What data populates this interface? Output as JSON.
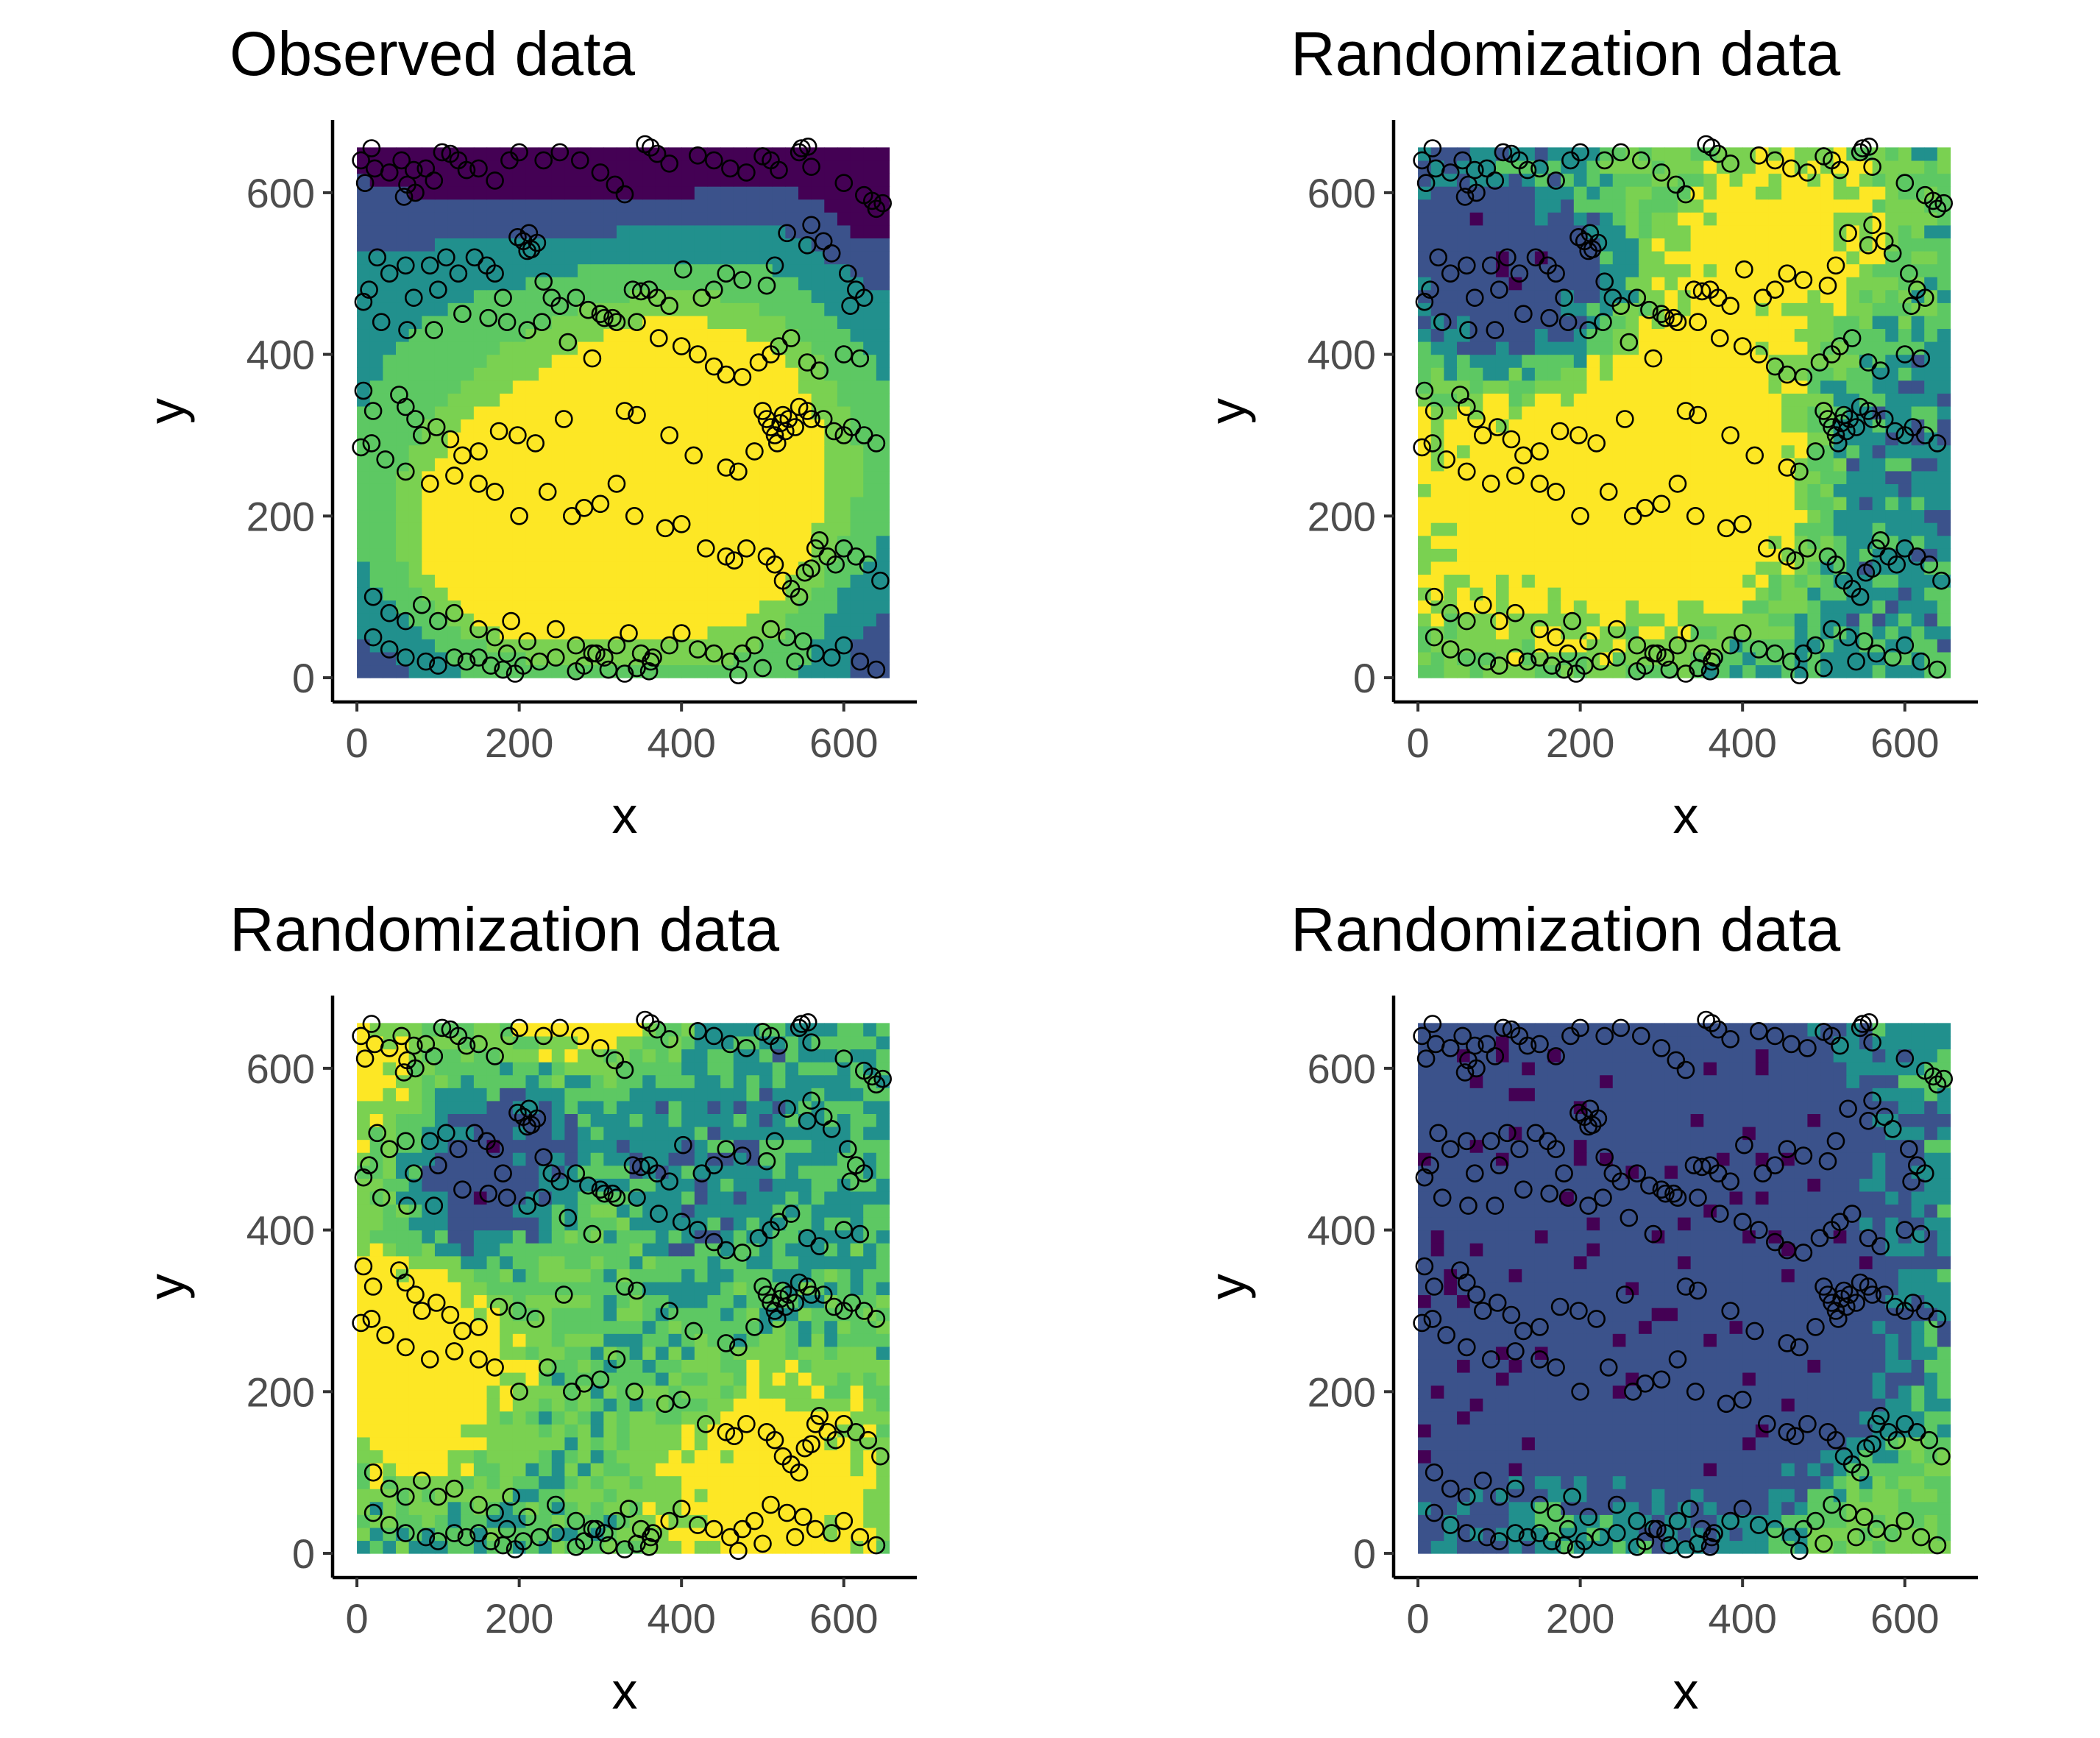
{
  "figure": {
    "palette": [
      "#440154",
      "#3b528b",
      "#21908d",
      "#5dc863",
      "#7ad151",
      "#fde725"
    ],
    "axis_color": "#000000",
    "tick_label_color": "#4d4d4d"
  },
  "chart_data": [
    {
      "type": "heatmap",
      "title": "Observed data",
      "xlabel": "x",
      "ylabel": "y",
      "xlim": [
        -30,
        690
      ],
      "ylim": [
        -30,
        690
      ],
      "xticks": [
        0,
        200,
        400,
        600
      ],
      "yticks": [
        0,
        200,
        400,
        600
      ],
      "grid": false,
      "legend": "none",
      "raster": {
        "cell": 16,
        "extent": [
          0,
          660,
          0,
          660
        ],
        "mode": "smooth",
        "seed": 11
      }
    },
    {
      "type": "heatmap",
      "title": "Randomization data",
      "xlabel": "x",
      "ylabel": "y",
      "xlim": [
        -30,
        690
      ],
      "ylim": [
        -30,
        690
      ],
      "xticks": [
        0,
        200,
        400,
        600
      ],
      "yticks": [
        0,
        200,
        400,
        600
      ],
      "grid": false,
      "legend": "none",
      "raster": {
        "cell": 16,
        "extent": [
          0,
          660,
          0,
          660
        ],
        "mode": "noisy",
        "seed": 23
      }
    },
    {
      "type": "heatmap",
      "title": "Randomization data",
      "xlabel": "x",
      "ylabel": "y",
      "xlim": [
        -30,
        690
      ],
      "ylim": [
        -30,
        690
      ],
      "xticks": [
        0,
        200,
        400,
        600
      ],
      "yticks": [
        0,
        200,
        400,
        600
      ],
      "grid": false,
      "legend": "none",
      "raster": {
        "cell": 16,
        "extent": [
          0,
          660,
          0,
          660
        ],
        "mode": "noisy",
        "seed": 37
      }
    },
    {
      "type": "heatmap",
      "title": "Randomization data",
      "xlabel": "x",
      "ylabel": "y",
      "xlim": [
        -30,
        690
      ],
      "ylim": [
        -30,
        690
      ],
      "xticks": [
        0,
        200,
        400,
        600
      ],
      "yticks": [
        0,
        200,
        400,
        600
      ],
      "grid": false,
      "legend": "none",
      "raster": {
        "cell": 16,
        "extent": [
          0,
          660,
          0,
          660
        ],
        "mode": "noisy",
        "seed": 53
      }
    }
  ],
  "points": [
    [
      5,
      640
    ],
    [
      18,
      655
    ],
    [
      22,
      630
    ],
    [
      10,
      612
    ],
    [
      40,
      625
    ],
    [
      55,
      640
    ],
    [
      62,
      610
    ],
    [
      70,
      628
    ],
    [
      85,
      630
    ],
    [
      58,
      595
    ],
    [
      72,
      600
    ],
    [
      95,
      615
    ],
    [
      105,
      650
    ],
    [
      115,
      648
    ],
    [
      125,
      640
    ],
    [
      135,
      628
    ],
    [
      150,
      630
    ],
    [
      170,
      615
    ],
    [
      188,
      640
    ],
    [
      200,
      650
    ],
    [
      230,
      640
    ],
    [
      250,
      650
    ],
    [
      275,
      640
    ],
    [
      300,
      625
    ],
    [
      318,
      610
    ],
    [
      330,
      598
    ],
    [
      355,
      660
    ],
    [
      362,
      656
    ],
    [
      370,
      648
    ],
    [
      385,
      636
    ],
    [
      420,
      646
    ],
    [
      440,
      640
    ],
    [
      460,
      630
    ],
    [
      480,
      625
    ],
    [
      500,
      645
    ],
    [
      510,
      640
    ],
    [
      520,
      628
    ],
    [
      545,
      650
    ],
    [
      548,
      655
    ],
    [
      556,
      657
    ],
    [
      560,
      632
    ],
    [
      600,
      612
    ],
    [
      625,
      597
    ],
    [
      635,
      590
    ],
    [
      640,
      580
    ],
    [
      648,
      587
    ],
    [
      15,
      480
    ],
    [
      25,
      520
    ],
    [
      40,
      500
    ],
    [
      60,
      510
    ],
    [
      70,
      470
    ],
    [
      90,
      510
    ],
    [
      100,
      480
    ],
    [
      110,
      520
    ],
    [
      125,
      500
    ],
    [
      145,
      520
    ],
    [
      160,
      510
    ],
    [
      170,
      500
    ],
    [
      180,
      470
    ],
    [
      198,
      545
    ],
    [
      205,
      540
    ],
    [
      210,
      528
    ],
    [
      212,
      550
    ],
    [
      215,
      530
    ],
    [
      222,
      538
    ],
    [
      230,
      490
    ],
    [
      240,
      470
    ],
    [
      250,
      460
    ],
    [
      270,
      470
    ],
    [
      285,
      455
    ],
    [
      300,
      450
    ],
    [
      315,
      445
    ],
    [
      340,
      480
    ],
    [
      350,
      478
    ],
    [
      360,
      480
    ],
    [
      370,
      470
    ],
    [
      385,
      460
    ],
    [
      402,
      505
    ],
    [
      425,
      470
    ],
    [
      440,
      480
    ],
    [
      455,
      500
    ],
    [
      475,
      492
    ],
    [
      505,
      485
    ],
    [
      515,
      510
    ],
    [
      530,
      550
    ],
    [
      555,
      535
    ],
    [
      560,
      560
    ],
    [
      575,
      540
    ],
    [
      585,
      525
    ],
    [
      605,
      500
    ],
    [
      615,
      480
    ],
    [
      625,
      470
    ],
    [
      608,
      460
    ],
    [
      8,
      465
    ],
    [
      30,
      440
    ],
    [
      62,
      430
    ],
    [
      95,
      430
    ],
    [
      130,
      450
    ],
    [
      162,
      445
    ],
    [
      185,
      440
    ],
    [
      210,
      430
    ],
    [
      228,
      440
    ],
    [
      260,
      415
    ],
    [
      290,
      395
    ],
    [
      305,
      445
    ],
    [
      320,
      440
    ],
    [
      345,
      440
    ],
    [
      372,
      420
    ],
    [
      400,
      410
    ],
    [
      420,
      400
    ],
    [
      440,
      385
    ],
    [
      455,
      375
    ],
    [
      475,
      372
    ],
    [
      495,
      390
    ],
    [
      510,
      400
    ],
    [
      520,
      410
    ],
    [
      535,
      420
    ],
    [
      555,
      390
    ],
    [
      570,
      380
    ],
    [
      600,
      400
    ],
    [
      620,
      395
    ],
    [
      8,
      355
    ],
    [
      20,
      330
    ],
    [
      52,
      350
    ],
    [
      60,
      335
    ],
    [
      72,
      320
    ],
    [
      80,
      300
    ],
    [
      98,
      310
    ],
    [
      115,
      295
    ],
    [
      130,
      275
    ],
    [
      150,
      280
    ],
    [
      175,
      305
    ],
    [
      198,
      300
    ],
    [
      220,
      290
    ],
    [
      255,
      320
    ],
    [
      330,
      330
    ],
    [
      345,
      325
    ],
    [
      385,
      300
    ],
    [
      415,
      275
    ],
    [
      455,
      260
    ],
    [
      470,
      255
    ],
    [
      490,
      280
    ],
    [
      500,
      330
    ],
    [
      505,
      320
    ],
    [
      510,
      310
    ],
    [
      515,
      300
    ],
    [
      518,
      290
    ],
    [
      522,
      315
    ],
    [
      525,
      325
    ],
    [
      528,
      305
    ],
    [
      532,
      320
    ],
    [
      540,
      310
    ],
    [
      545,
      335
    ],
    [
      555,
      330
    ],
    [
      560,
      320
    ],
    [
      575,
      320
    ],
    [
      588,
      305
    ],
    [
      600,
      300
    ],
    [
      610,
      310
    ],
    [
      625,
      300
    ],
    [
      640,
      290
    ],
    [
      5,
      285
    ],
    [
      18,
      290
    ],
    [
      35,
      270
    ],
    [
      60,
      255
    ],
    [
      90,
      240
    ],
    [
      120,
      250
    ],
    [
      150,
      240
    ],
    [
      170,
      230
    ],
    [
      200,
      200
    ],
    [
      235,
      230
    ],
    [
      265,
      200
    ],
    [
      280,
      210
    ],
    [
      300,
      215
    ],
    [
      320,
      240
    ],
    [
      342,
      200
    ],
    [
      380,
      185
    ],
    [
      400,
      190
    ],
    [
      430,
      160
    ],
    [
      455,
      150
    ],
    [
      465,
      145
    ],
    [
      480,
      160
    ],
    [
      505,
      150
    ],
    [
      515,
      140
    ],
    [
      525,
      120
    ],
    [
      535,
      110
    ],
    [
      545,
      100
    ],
    [
      552,
      130
    ],
    [
      560,
      135
    ],
    [
      565,
      160
    ],
    [
      570,
      170
    ],
    [
      580,
      150
    ],
    [
      590,
      140
    ],
    [
      600,
      160
    ],
    [
      615,
      150
    ],
    [
      630,
      140
    ],
    [
      645,
      120
    ],
    [
      20,
      100
    ],
    [
      40,
      80
    ],
    [
      60,
      70
    ],
    [
      80,
      90
    ],
    [
      100,
      70
    ],
    [
      120,
      80
    ],
    [
      150,
      60
    ],
    [
      170,
      50
    ],
    [
      190,
      70
    ],
    [
      210,
      45
    ],
    [
      245,
      60
    ],
    [
      270,
      40
    ],
    [
      290,
      30
    ],
    [
      305,
      25
    ],
    [
      320,
      40
    ],
    [
      335,
      55
    ],
    [
      350,
      30
    ],
    [
      362,
      20
    ],
    [
      385,
      40
    ],
    [
      400,
      55
    ],
    [
      420,
      35
    ],
    [
      440,
      30
    ],
    [
      460,
      20
    ],
    [
      475,
      30
    ],
    [
      490,
      40
    ],
    [
      510,
      60
    ],
    [
      530,
      50
    ],
    [
      550,
      45
    ],
    [
      565,
      30
    ],
    [
      585,
      25
    ],
    [
      600,
      40
    ],
    [
      620,
      20
    ],
    [
      640,
      10
    ],
    [
      20,
      50
    ],
    [
      40,
      35
    ],
    [
      60,
      25
    ],
    [
      85,
      20
    ],
    [
      100,
      15
    ],
    [
      120,
      25
    ],
    [
      135,
      20
    ],
    [
      150,
      25
    ],
    [
      165,
      15
    ],
    [
      180,
      10
    ],
    [
      185,
      30
    ],
    [
      195,
      5
    ],
    [
      205,
      15
    ],
    [
      225,
      20
    ],
    [
      245,
      25
    ],
    [
      270,
      8
    ],
    [
      280,
      15
    ],
    [
      295,
      30
    ],
    [
      310,
      10
    ],
    [
      330,
      5
    ],
    [
      345,
      12
    ],
    [
      360,
      8
    ],
    [
      365,
      25
    ],
    [
      470,
      3
    ],
    [
      500,
      12
    ],
    [
      540,
      20
    ]
  ]
}
